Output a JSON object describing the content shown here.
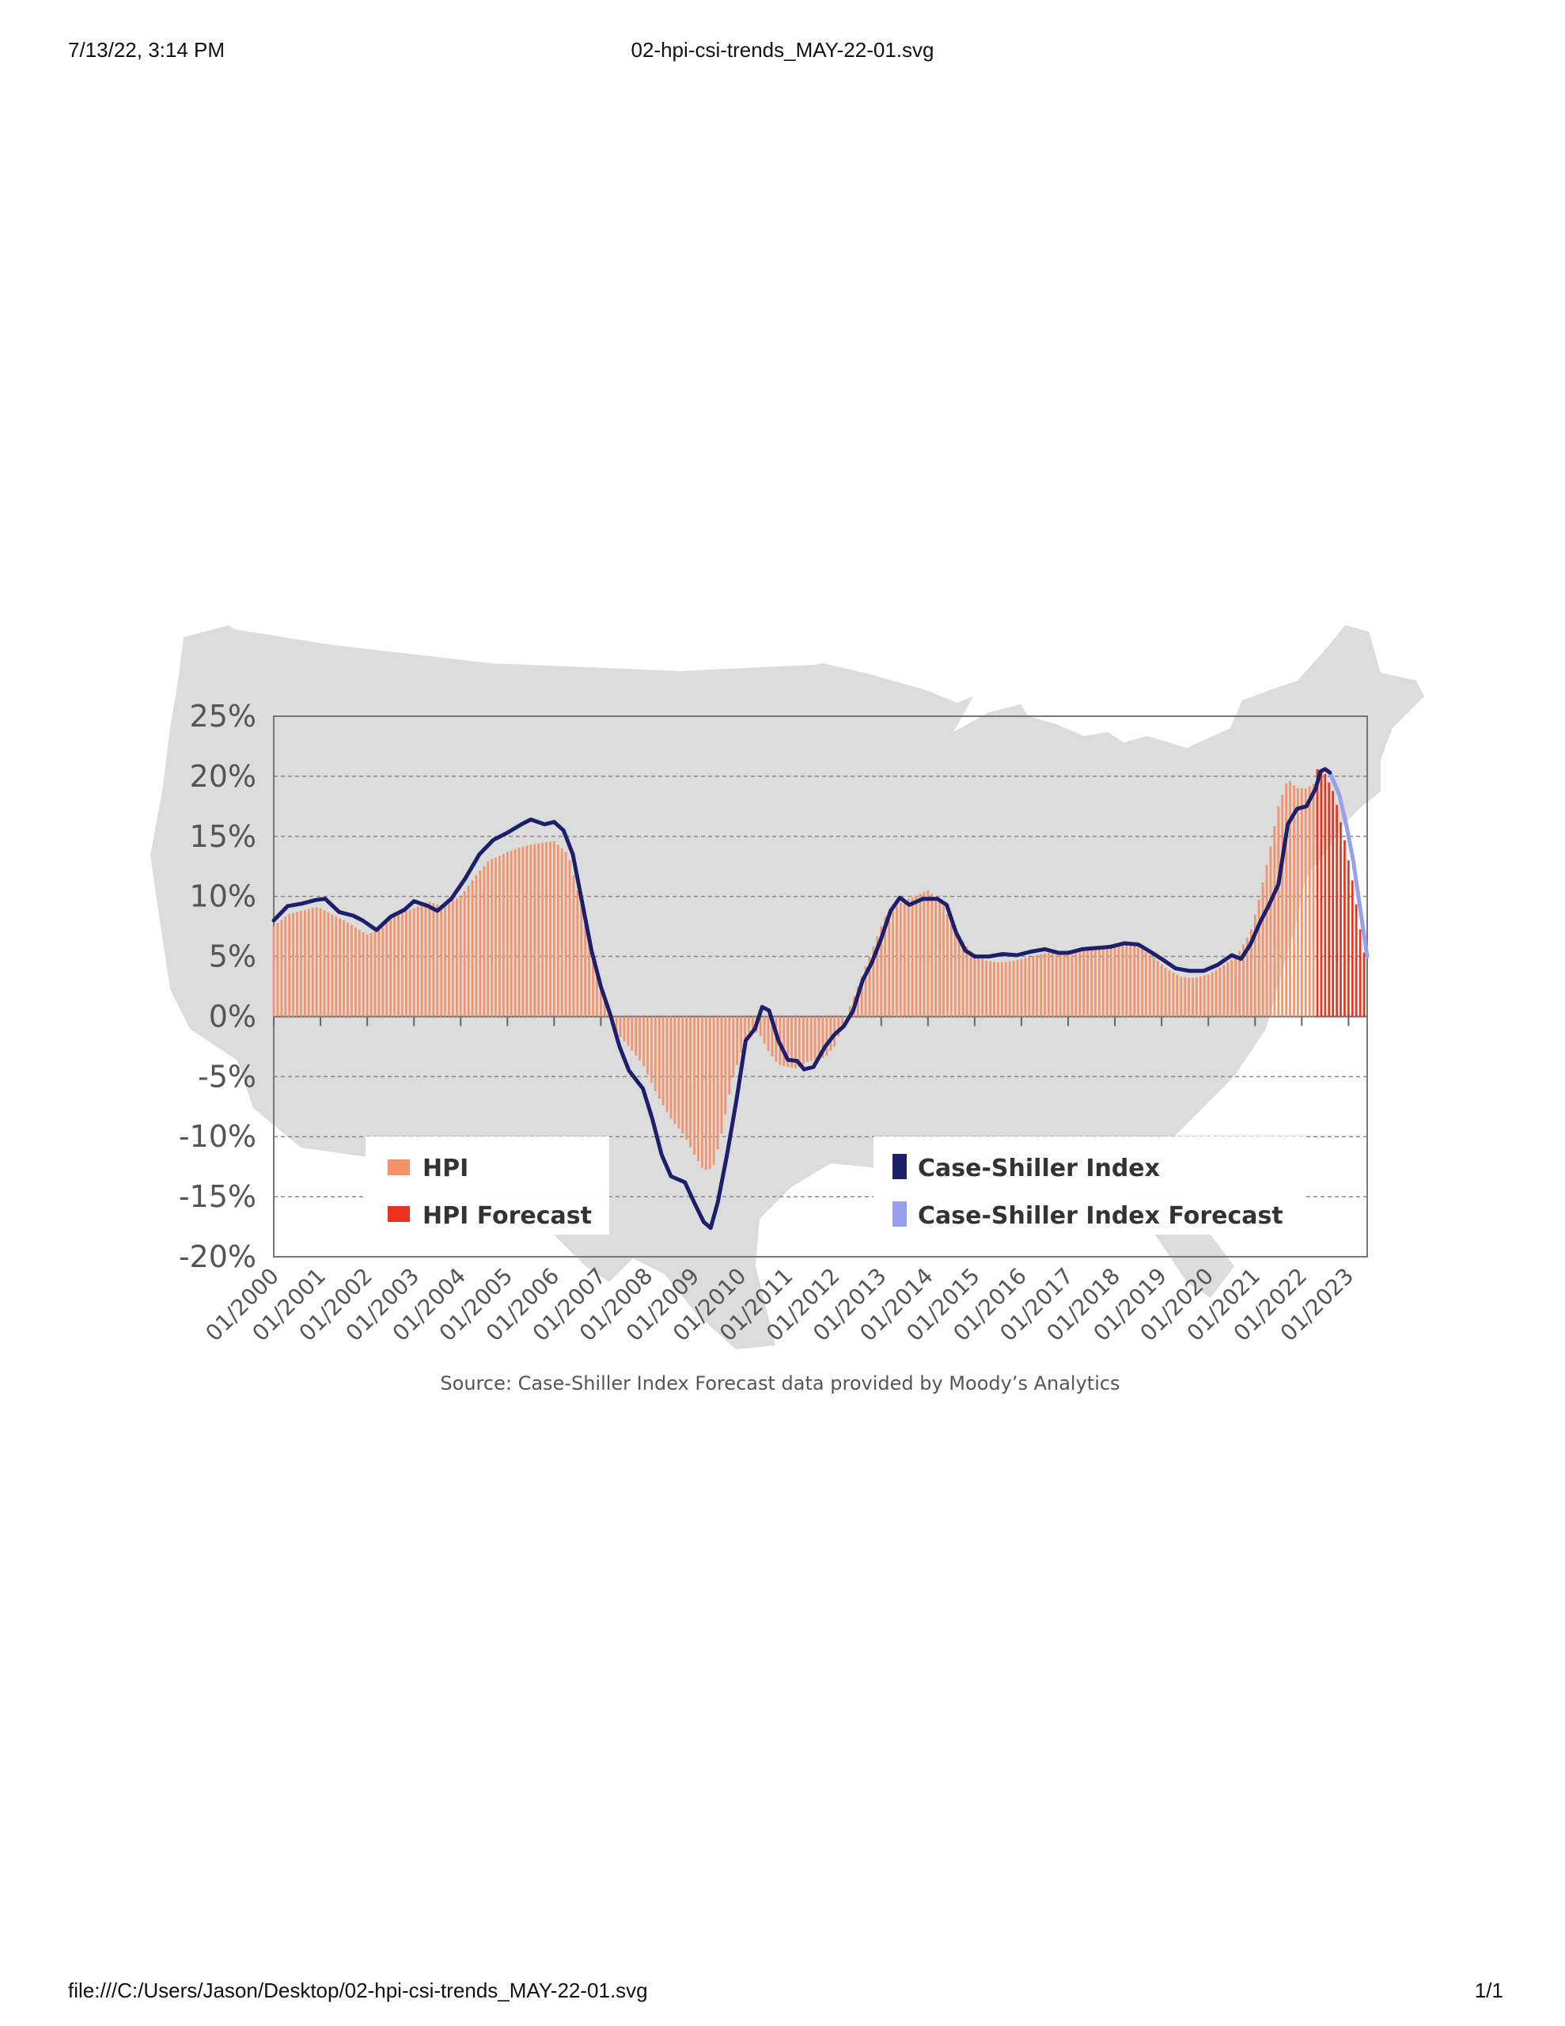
{
  "print_header": {
    "datetime": "7/13/22, 3:14 PM",
    "title": "02-hpi-csi-trends_MAY-22-01.svg"
  },
  "print_footer": {
    "path": "file:///C:/Users/Jason/Desktop/02-hpi-csi-trends_MAY-22-01.svg",
    "page": "1/1"
  },
  "colors": {
    "hpi": "#f4936a",
    "hpi_forecast": "#e8341c",
    "csi": "#1c1f6b",
    "csi_forecast": "#96a0f0",
    "map": "#dcdcdc",
    "grid": "#888888"
  },
  "legend": {
    "left": [
      "HPI",
      "HPI Forecast"
    ],
    "right": [
      "Case-Shiller Index",
      "Case-Shiller Index Forecast"
    ]
  },
  "source_note": "Source: Case-Shiller Index Forecast data provided by Moody’s Analytics",
  "chart_data": {
    "type": "bar",
    "y_tick_labels": [
      "25%",
      "20%",
      "15%",
      "10%",
      "5%",
      "0%",
      "-5%",
      "-10%",
      "-15%",
      "-20%"
    ],
    "x_tick_labels": [
      "01/2000",
      "01/2001",
      "01/2002",
      "01/2003",
      "01/2004",
      "01/2005",
      "01/2006",
      "01/2007",
      "01/2008",
      "01/2009",
      "01/2010",
      "01/2011",
      "01/2012",
      "01/2013",
      "01/2014",
      "01/2015",
      "01/2016",
      "01/2017",
      "01/2018",
      "01/2019",
      "01/2020",
      "01/2021",
      "01/2022",
      "01/2023"
    ],
    "ylim": [
      -20,
      25
    ],
    "xlim": [
      2000.0,
      2023.4
    ],
    "grid": true,
    "forecast_start": 2022.3,
    "series": [
      {
        "name": "HPI",
        "type": "bar",
        "points": [
          [
            2000.0,
            7.5
          ],
          [
            2000.3,
            8.5
          ],
          [
            2000.6,
            8.8
          ],
          [
            2000.9,
            9.1
          ],
          [
            2001.0,
            9.0
          ],
          [
            2001.3,
            8.4
          ],
          [
            2001.6,
            7.8
          ],
          [
            2002.0,
            6.8
          ],
          [
            2002.3,
            7.3
          ],
          [
            2002.6,
            8.5
          ],
          [
            2003.0,
            9.0
          ],
          [
            2003.3,
            9.6
          ],
          [
            2003.6,
            9.2
          ],
          [
            2004.0,
            10.0
          ],
          [
            2004.3,
            11.6
          ],
          [
            2004.6,
            13.0
          ],
          [
            2004.9,
            13.5
          ],
          [
            2005.2,
            14.0
          ],
          [
            2005.5,
            14.3
          ],
          [
            2005.8,
            14.5
          ],
          [
            2006.0,
            14.6
          ],
          [
            2006.3,
            13.5
          ],
          [
            2006.6,
            9.0
          ],
          [
            2006.9,
            3.5
          ],
          [
            2007.1,
            1.0
          ],
          [
            2007.3,
            -1.2
          ],
          [
            2007.6,
            -2.5
          ],
          [
            2007.9,
            -4.0
          ],
          [
            2008.2,
            -6.5
          ],
          [
            2008.5,
            -8.5
          ],
          [
            2008.8,
            -10.0
          ],
          [
            2009.0,
            -11.5
          ],
          [
            2009.2,
            -12.8
          ],
          [
            2009.4,
            -12.6
          ],
          [
            2009.6,
            -9.5
          ],
          [
            2009.8,
            -5.5
          ],
          [
            2010.0,
            -3.0
          ],
          [
            2010.2,
            -1.0
          ],
          [
            2010.4,
            -1.5
          ],
          [
            2010.6,
            -3.0
          ],
          [
            2010.8,
            -4.0
          ],
          [
            2011.0,
            -4.2
          ],
          [
            2011.2,
            -4.3
          ],
          [
            2011.4,
            -3.8
          ],
          [
            2011.6,
            -3.6
          ],
          [
            2011.8,
            -3.4
          ],
          [
            2012.0,
            -2.5
          ],
          [
            2012.3,
            0.5
          ],
          [
            2012.6,
            3.5
          ],
          [
            2012.9,
            6.5
          ],
          [
            2013.1,
            8.5
          ],
          [
            2013.4,
            9.5
          ],
          [
            2013.7,
            10.0
          ],
          [
            2014.0,
            10.5
          ],
          [
            2014.3,
            9.5
          ],
          [
            2014.6,
            7.0
          ],
          [
            2014.9,
            5.5
          ],
          [
            2015.2,
            4.7
          ],
          [
            2015.5,
            4.5
          ],
          [
            2015.8,
            4.6
          ],
          [
            2016.1,
            4.9
          ],
          [
            2016.4,
            5.2
          ],
          [
            2016.7,
            5.4
          ],
          [
            2017.0,
            5.5
          ],
          [
            2017.3,
            5.6
          ],
          [
            2017.6,
            5.8
          ],
          [
            2017.9,
            5.9
          ],
          [
            2018.2,
            6.0
          ],
          [
            2018.5,
            5.8
          ],
          [
            2018.8,
            5.0
          ],
          [
            2019.1,
            4.0
          ],
          [
            2019.4,
            3.3
          ],
          [
            2019.7,
            3.2
          ],
          [
            2020.0,
            3.5
          ],
          [
            2020.3,
            4.2
          ],
          [
            2020.6,
            5.0
          ],
          [
            2020.9,
            7.0
          ],
          [
            2021.1,
            10.0
          ],
          [
            2021.3,
            13.5
          ],
          [
            2021.5,
            17.5
          ],
          [
            2021.7,
            19.8
          ],
          [
            2021.9,
            19.0
          ],
          [
            2022.1,
            19.0
          ],
          [
            2022.3,
            19.5
          ]
        ]
      },
      {
        "name": "HPI Forecast",
        "type": "bar",
        "points": [
          [
            2022.35,
            20.6
          ],
          [
            2022.5,
            20.2
          ],
          [
            2022.7,
            18.5
          ],
          [
            2022.9,
            15.0
          ],
          [
            2023.1,
            11.0
          ],
          [
            2023.3,
            6.0
          ],
          [
            2023.4,
            4.0
          ]
        ]
      },
      {
        "name": "Case-Shiller Index",
        "type": "line",
        "points": [
          [
            2000.0,
            8.0
          ],
          [
            2000.3,
            9.2
          ],
          [
            2000.6,
            9.4
          ],
          [
            2000.9,
            9.7
          ],
          [
            2001.1,
            9.8
          ],
          [
            2001.4,
            8.7
          ],
          [
            2001.7,
            8.4
          ],
          [
            2001.9,
            8.0
          ],
          [
            2002.2,
            7.2
          ],
          [
            2002.5,
            8.3
          ],
          [
            2002.8,
            8.9
          ],
          [
            2003.0,
            9.6
          ],
          [
            2003.3,
            9.2
          ],
          [
            2003.5,
            8.8
          ],
          [
            2003.8,
            9.8
          ],
          [
            2004.1,
            11.5
          ],
          [
            2004.4,
            13.5
          ],
          [
            2004.7,
            14.7
          ],
          [
            2005.0,
            15.3
          ],
          [
            2005.3,
            16.0
          ],
          [
            2005.5,
            16.4
          ],
          [
            2005.8,
            16.0
          ],
          [
            2006.0,
            16.2
          ],
          [
            2006.2,
            15.5
          ],
          [
            2006.4,
            13.5
          ],
          [
            2006.6,
            9.5
          ],
          [
            2006.8,
            5.5
          ],
          [
            2007.0,
            2.5
          ],
          [
            2007.2,
            0.2
          ],
          [
            2007.4,
            -2.5
          ],
          [
            2007.6,
            -4.5
          ],
          [
            2007.9,
            -6.0
          ],
          [
            2008.1,
            -8.5
          ],
          [
            2008.3,
            -11.5
          ],
          [
            2008.5,
            -13.3
          ],
          [
            2008.8,
            -13.8
          ],
          [
            2009.0,
            -15.5
          ],
          [
            2009.2,
            -17.1
          ],
          [
            2009.35,
            -17.6
          ],
          [
            2009.5,
            -15.5
          ],
          [
            2009.7,
            -11.5
          ],
          [
            2009.9,
            -7.0
          ],
          [
            2010.1,
            -2.0
          ],
          [
            2010.3,
            -1.0
          ],
          [
            2010.45,
            0.8
          ],
          [
            2010.6,
            0.5
          ],
          [
            2010.8,
            -2.0
          ],
          [
            2011.0,
            -3.6
          ],
          [
            2011.2,
            -3.7
          ],
          [
            2011.35,
            -4.4
          ],
          [
            2011.55,
            -4.2
          ],
          [
            2011.8,
            -2.5
          ],
          [
            2012.0,
            -1.5
          ],
          [
            2012.2,
            -0.8
          ],
          [
            2012.4,
            0.5
          ],
          [
            2012.6,
            3.0
          ],
          [
            2012.8,
            4.5
          ],
          [
            2013.0,
            6.5
          ],
          [
            2013.2,
            8.8
          ],
          [
            2013.4,
            9.9
          ],
          [
            2013.6,
            9.3
          ],
          [
            2013.9,
            9.8
          ],
          [
            2014.2,
            9.8
          ],
          [
            2014.4,
            9.3
          ],
          [
            2014.6,
            7.0
          ],
          [
            2014.8,
            5.5
          ],
          [
            2015.0,
            5.0
          ],
          [
            2015.3,
            5.0
          ],
          [
            2015.6,
            5.2
          ],
          [
            2015.9,
            5.1
          ],
          [
            2016.2,
            5.4
          ],
          [
            2016.5,
            5.6
          ],
          [
            2016.8,
            5.3
          ],
          [
            2017.0,
            5.3
          ],
          [
            2017.3,
            5.6
          ],
          [
            2017.6,
            5.7
          ],
          [
            2017.9,
            5.8
          ],
          [
            2018.2,
            6.1
          ],
          [
            2018.5,
            6.0
          ],
          [
            2018.8,
            5.3
          ],
          [
            2019.0,
            4.8
          ],
          [
            2019.3,
            4.0
          ],
          [
            2019.6,
            3.8
          ],
          [
            2019.9,
            3.8
          ],
          [
            2020.2,
            4.3
          ],
          [
            2020.5,
            5.1
          ],
          [
            2020.7,
            4.8
          ],
          [
            2020.9,
            6.0
          ],
          [
            2021.1,
            7.8
          ],
          [
            2021.3,
            9.3
          ],
          [
            2021.5,
            11.0
          ],
          [
            2021.7,
            16.0
          ],
          [
            2021.9,
            17.3
          ],
          [
            2022.1,
            17.5
          ],
          [
            2022.3,
            19.0
          ],
          [
            2022.4,
            20.4
          ],
          [
            2022.5,
            20.6
          ],
          [
            2022.6,
            20.3
          ]
        ]
      },
      {
        "name": "Case-Shiller Index Forecast",
        "type": "line",
        "points": [
          [
            2022.6,
            20.3
          ],
          [
            2022.8,
            18.5
          ],
          [
            2022.95,
            16.0
          ],
          [
            2023.1,
            13.0
          ],
          [
            2023.25,
            9.0
          ],
          [
            2023.4,
            5.0
          ]
        ]
      }
    ]
  }
}
